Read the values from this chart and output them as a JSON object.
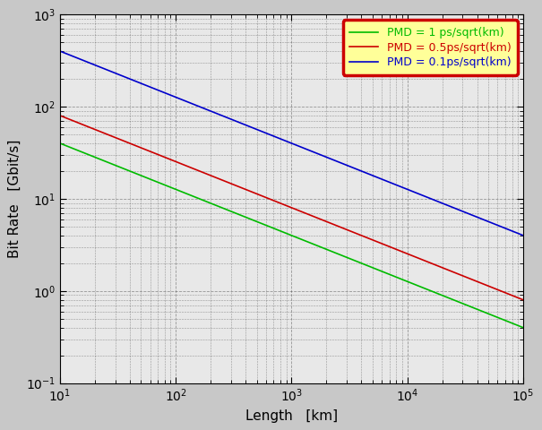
{
  "title": "",
  "xlabel": "Length   [km]",
  "ylabel": "Bit Rate   [Gbit/s]",
  "xlim": [
    10,
    100000.0
  ],
  "ylim": [
    0.1,
    1000
  ],
  "lines": [
    {
      "label": "PMD = 1 ps/sqrt(km)",
      "pmd": 1.0,
      "color": "#00bb00",
      "linewidth": 1.2
    },
    {
      "label": "PMD = 0.5ps/sqrt(km)",
      "pmd": 0.5,
      "color": "#cc0000",
      "linewidth": 1.2
    },
    {
      "label": "PMD = 0.1ps/sqrt(km)",
      "pmd": 0.1,
      "color": "#0000cc",
      "linewidth": 1.2
    }
  ],
  "C": 126.5,
  "plot_bg_color": "#e8e8e8",
  "fig_bg_color": "#c8c8c8",
  "legend_facecolor": "#ffff99",
  "legend_edgecolor": "#cc0000",
  "grid_color": "#000000",
  "grid_alpha": 0.35,
  "grid_linestyle": "--",
  "major_grid_linewidth": 0.6,
  "minor_grid_linewidth": 0.4,
  "label_fontsize": 11,
  "legend_fontsize": 9,
  "tick_fontsize": 10
}
